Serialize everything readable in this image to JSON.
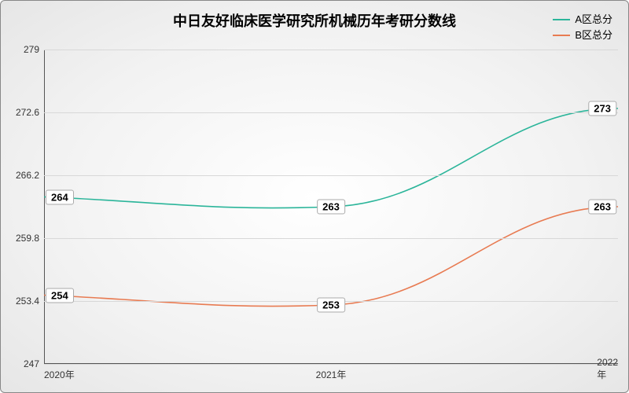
{
  "chart": {
    "type": "line",
    "title": "中日友好临床医学研究所机械历年考研分数线",
    "title_fontsize": 18,
    "background": "radial-gradient #ffffff to #e6e6e6",
    "border_color": "#888888",
    "grid_color": "#d8d8d8",
    "axis_color": "#555555",
    "text_color": "#000000",
    "label_fontsize": 12,
    "datalabel_fontsize": 13,
    "x_categories": [
      "2020年",
      "2021年",
      "2022年"
    ],
    "y_ticks": [
      247,
      253.4,
      259.8,
      266.2,
      272.6,
      279
    ],
    "ylim": [
      247,
      279
    ],
    "line_width": 1.6,
    "curve": "smooth",
    "series": [
      {
        "name": "A区总分",
        "color": "#2bb59a",
        "values": [
          264,
          263,
          273
        ],
        "labels": [
          "264",
          "263",
          "273"
        ]
      },
      {
        "name": "B区总分",
        "color": "#e87b52",
        "values": [
          254,
          253,
          263
        ],
        "labels": [
          "254",
          "253",
          "263"
        ]
      }
    ],
    "legend": {
      "position": "top-right",
      "fontsize": 13
    }
  }
}
